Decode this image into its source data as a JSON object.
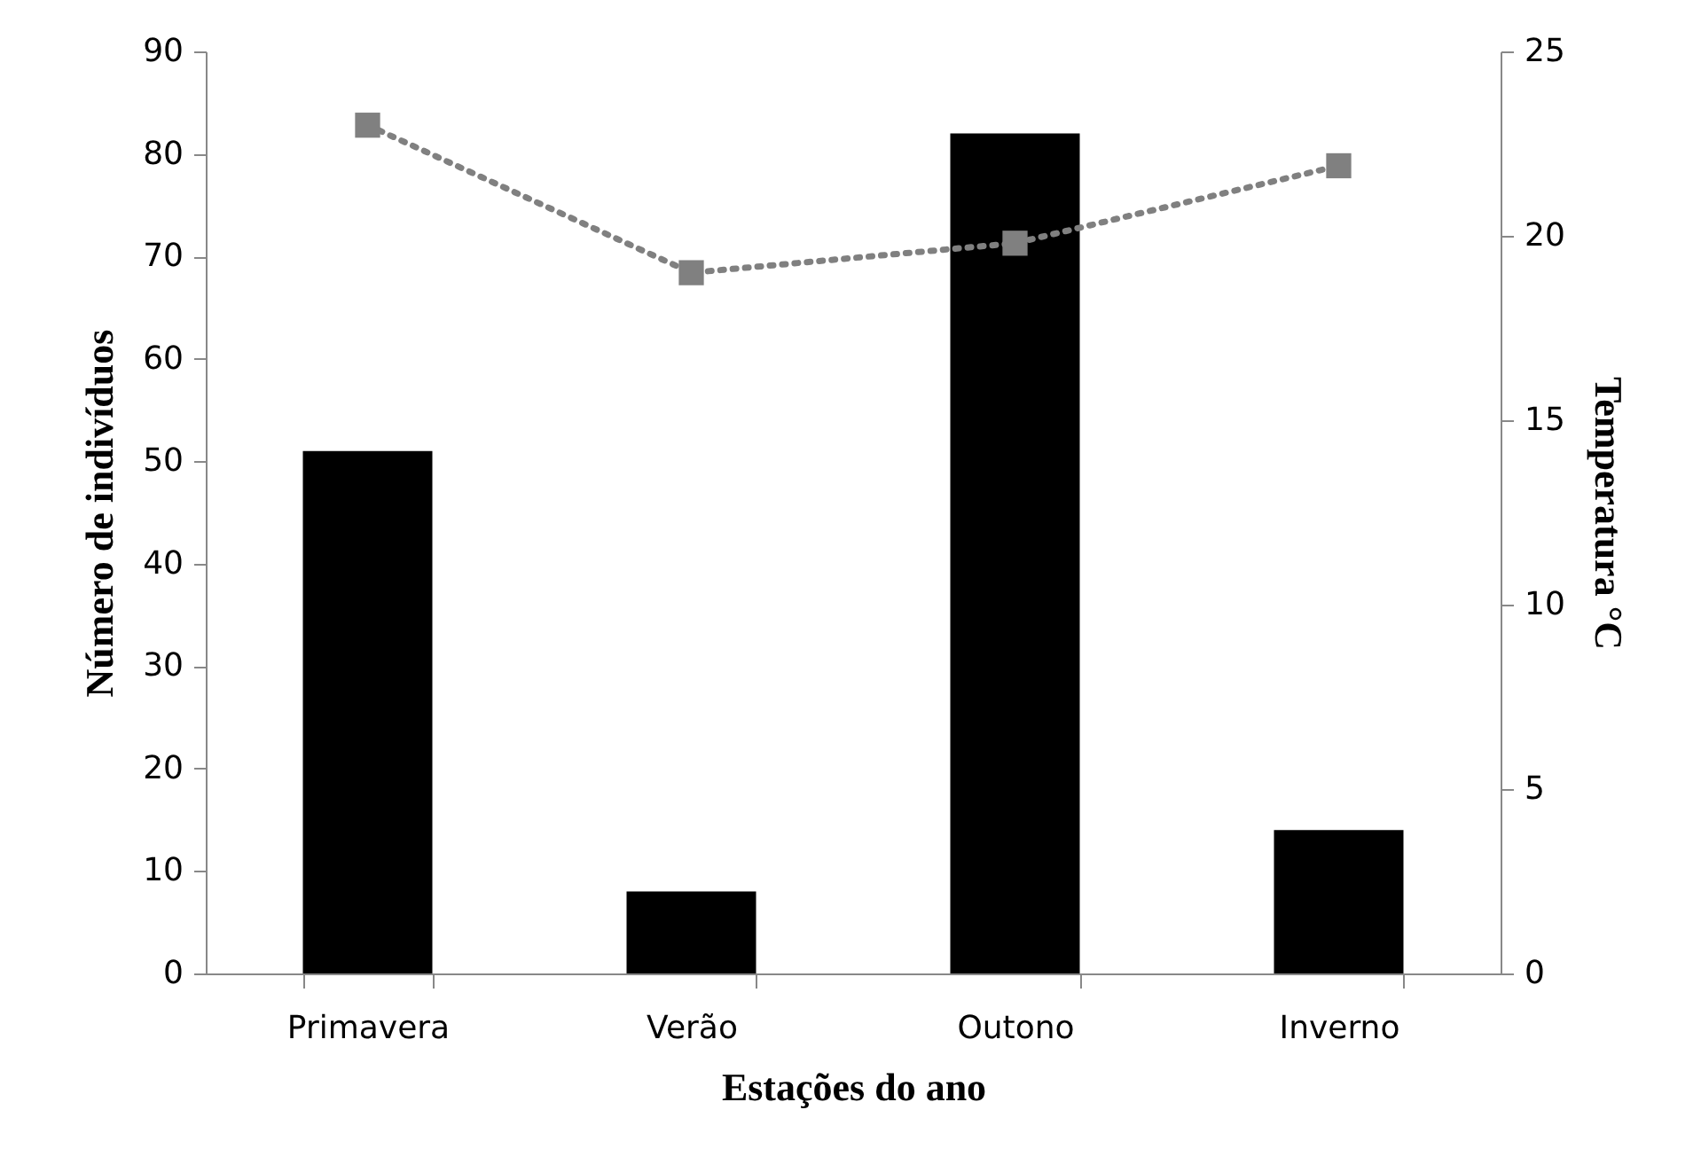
{
  "chart_data": {
    "type": "bar",
    "xlabel": "Estações do ano",
    "ylabel": "Número de indivíduos",
    "y2label": "Temperatura °C",
    "categories": [
      "Primavera",
      "Verão",
      "Outono",
      "Inverno"
    ],
    "series": [
      {
        "color": "#000000",
        "values": [
          51,
          8,
          82,
          14
        ]
      },
      {
        "type": "line",
        "axis": "y2",
        "color": "#808080",
        "values": [
          23,
          19,
          19.8,
          21.9
        ],
        "marker": "square",
        "line_style": "dotted"
      }
    ],
    "ylim": [
      0,
      90
    ],
    "yticks": [
      0,
      10,
      20,
      30,
      40,
      50,
      60,
      70,
      80,
      90
    ],
    "y2lim": [
      0,
      25
    ],
    "y2ticks": [
      0,
      5,
      10,
      15,
      20,
      25
    ],
    "grid": false
  }
}
